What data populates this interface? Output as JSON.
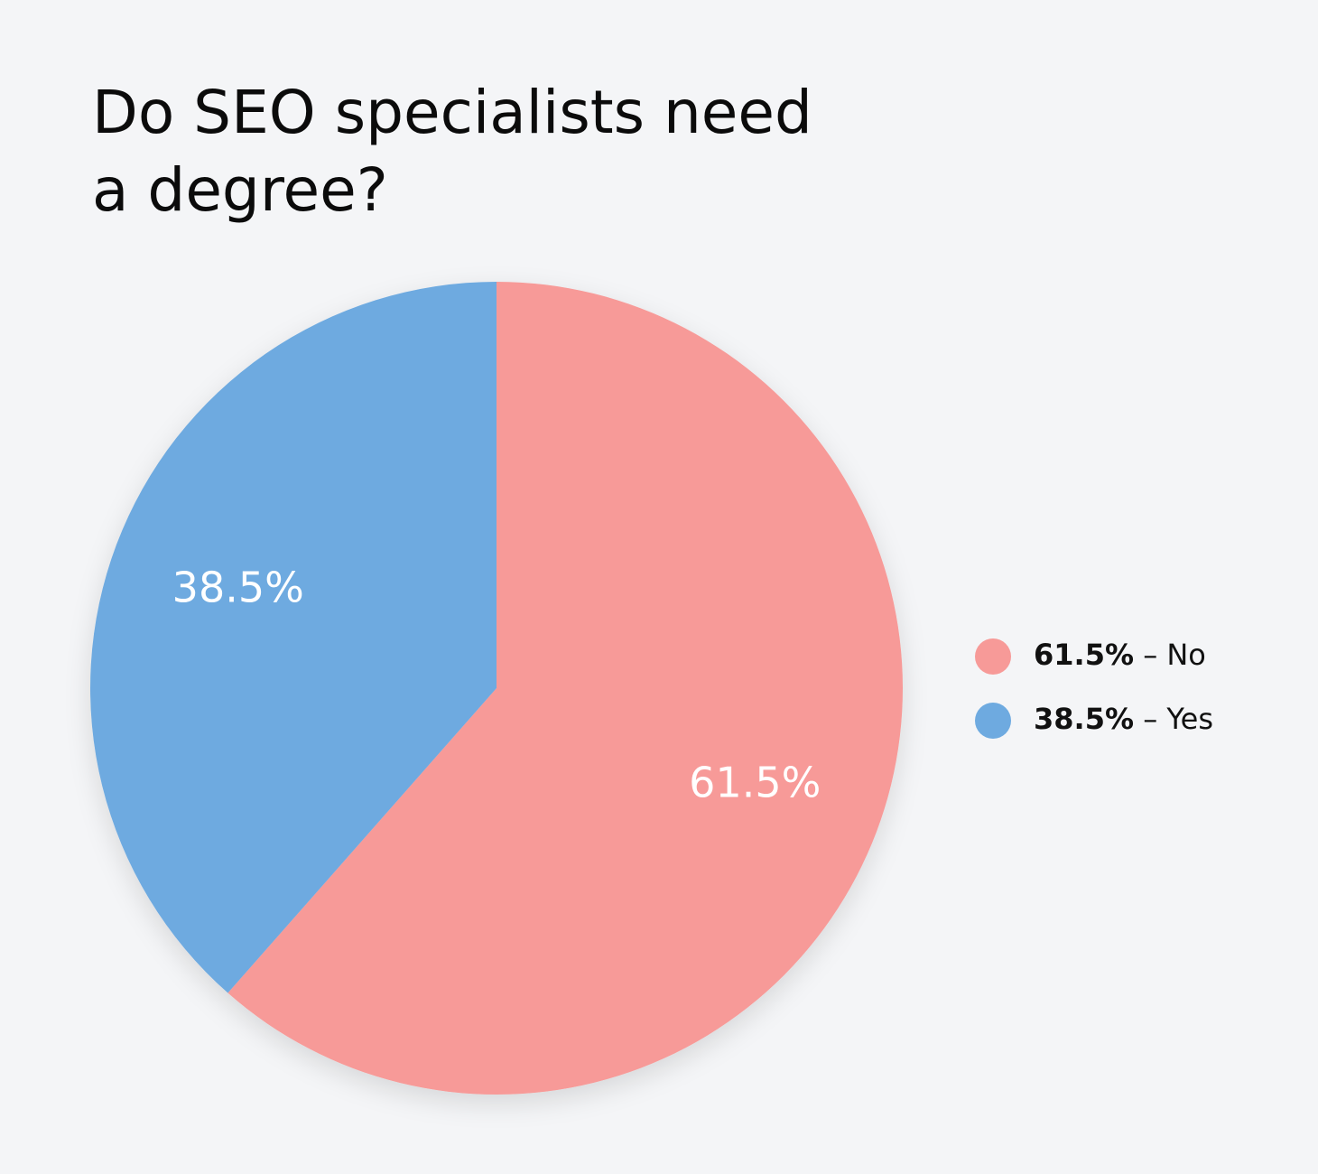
{
  "chart_data": {
    "type": "pie",
    "title": "Do SEO specialists need a degree?",
    "categories": [
      "No",
      "Yes"
    ],
    "values": [
      61.5,
      38.5
    ],
    "value_labels": [
      "61.5%",
      "38.5%"
    ],
    "colors": [
      "#f79a98",
      "#6eaae0"
    ],
    "legend_separator": " – ",
    "legend": "right"
  }
}
